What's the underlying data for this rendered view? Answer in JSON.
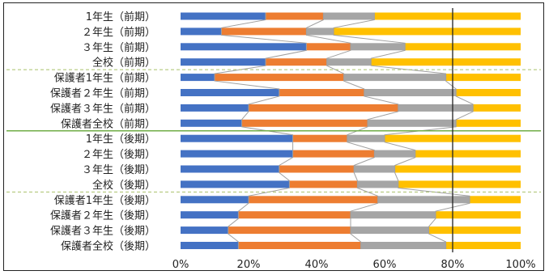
{
  "chart_data": {
    "type": "bar",
    "stacked": "percent",
    "orientation": "horizontal",
    "categories": [
      "1年生（前期）",
      "２年生（前期）",
      "３年生（前期）",
      "全校（前期）",
      "保護者1年生（前期）",
      "保護者２年生（前期）",
      "保護者３年生（前期）",
      "保護者全校（前期）",
      "1年生（後期）",
      "２年生（後期）",
      "３年生（後期）",
      "全校（後期）",
      "保護者1年生（後期）",
      "保護者２年生（後期）",
      "保護者３年生（後期）",
      "保護者全校（後期）"
    ],
    "series": [
      {
        "color": "#4472c4",
        "values": [
          25,
          12,
          37,
          25,
          10,
          29,
          20,
          18,
          33,
          33,
          29,
          32,
          20,
          17,
          14,
          17
        ]
      },
      {
        "color": "#ed7d31",
        "values": [
          17,
          25,
          13,
          18,
          38,
          25,
          44,
          37,
          16,
          24,
          22,
          20,
          38,
          33,
          36,
          36
        ]
      },
      {
        "color": "#a5a5a5",
        "values": [
          15,
          8,
          16,
          13,
          30,
          27,
          22,
          26,
          11,
          12,
          12,
          12,
          27,
          25,
          23,
          25
        ]
      },
      {
        "color": "#ffc000",
        "values": [
          43,
          55,
          34,
          44,
          22,
          19,
          14,
          19,
          40,
          31,
          37,
          36,
          15,
          25,
          27,
          22
        ]
      }
    ],
    "xlim": [
      0,
      100
    ],
    "xticks": [
      "0%",
      "20%",
      "40%",
      "60%",
      "80%",
      "100%"
    ],
    "reference_line_x": 80,
    "series_lines": true,
    "grid": false,
    "legend": "none",
    "group_dividers": [
      {
        "after_index": 3,
        "style": "dashed",
        "color": "#a9c16b"
      },
      {
        "after_index": 7,
        "style": "solid",
        "color": "#70ad47"
      },
      {
        "after_index": 11,
        "style": "dashed",
        "color": "#a9c16b"
      }
    ]
  }
}
